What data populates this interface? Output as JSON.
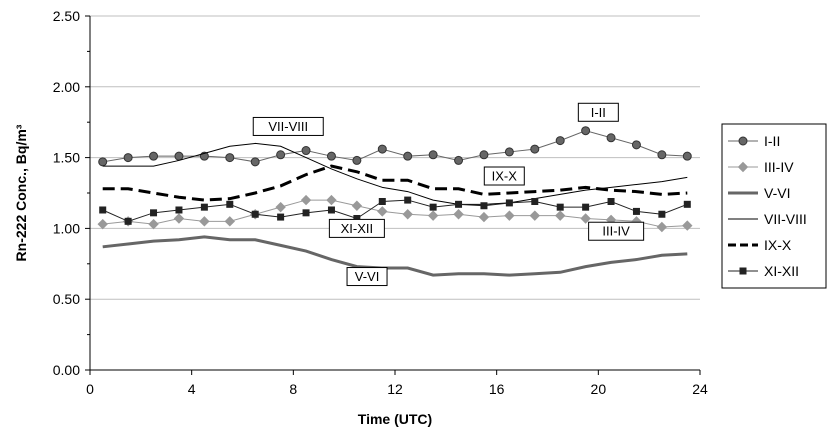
{
  "chart_data": {
    "type": "line",
    "title": "",
    "xlabel": "Time (UTC)",
    "ylabel": "Rn-222 Conc., Bq/m³",
    "xlim": [
      0,
      24
    ],
    "ylim": [
      0,
      2.5
    ],
    "x_ticks": [
      "0",
      "4",
      "8",
      "12",
      "16",
      "20",
      "24"
    ],
    "y_ticks": [
      "0.00",
      "0.50",
      "1.00",
      "1.50",
      "2.00",
      "2.50"
    ],
    "grid": "horizontal",
    "legend_position": "right",
    "x": [
      0.5,
      1.5,
      2.5,
      3.5,
      4.5,
      5.5,
      6.5,
      7.5,
      8.5,
      9.5,
      10.5,
      11.5,
      12.5,
      13.5,
      14.5,
      15.5,
      16.5,
      17.5,
      18.5,
      19.5,
      20.5,
      21.5,
      22.5,
      23.5
    ],
    "series": [
      {
        "name": "I-II",
        "style": "circle",
        "color": "#666666",
        "values": [
          1.47,
          1.5,
          1.51,
          1.51,
          1.51,
          1.5,
          1.47,
          1.52,
          1.55,
          1.51,
          1.48,
          1.56,
          1.51,
          1.52,
          1.48,
          1.52,
          1.54,
          1.56,
          1.62,
          1.69,
          1.64,
          1.59,
          1.52,
          1.51
        ]
      },
      {
        "name": "III-IV",
        "style": "diamond",
        "color": "#999999",
        "values": [
          1.03,
          1.05,
          1.03,
          1.07,
          1.05,
          1.05,
          1.1,
          1.15,
          1.2,
          1.2,
          1.16,
          1.12,
          1.1,
          1.09,
          1.1,
          1.08,
          1.09,
          1.09,
          1.09,
          1.07,
          1.06,
          1.05,
          1.01,
          1.02
        ]
      },
      {
        "name": "V-VI",
        "style": "thick",
        "color": "#666666",
        "values": [
          0.87,
          0.89,
          0.91,
          0.92,
          0.94,
          0.92,
          0.92,
          0.88,
          0.84,
          0.78,
          0.73,
          0.72,
          0.72,
          0.67,
          0.68,
          0.68,
          0.67,
          0.68,
          0.69,
          0.73,
          0.76,
          0.78,
          0.81,
          0.82
        ]
      },
      {
        "name": "VII-VIII",
        "style": "thin",
        "color": "#000000",
        "values": [
          1.44,
          1.44,
          1.44,
          1.48,
          1.53,
          1.58,
          1.6,
          1.58,
          1.5,
          1.42,
          1.35,
          1.29,
          1.26,
          1.2,
          1.17,
          1.17,
          1.18,
          1.21,
          1.24,
          1.27,
          1.29,
          1.31,
          1.33,
          1.36
        ]
      },
      {
        "name": "IX-X",
        "style": "dashed",
        "color": "#000000",
        "values": [
          1.28,
          1.28,
          1.25,
          1.22,
          1.2,
          1.21,
          1.25,
          1.3,
          1.38,
          1.44,
          1.4,
          1.34,
          1.34,
          1.28,
          1.28,
          1.24,
          1.25,
          1.26,
          1.27,
          1.29,
          1.27,
          1.26,
          1.24,
          1.25
        ]
      },
      {
        "name": "XI-XII",
        "style": "square",
        "color": "#222222",
        "values": [
          1.13,
          1.05,
          1.11,
          1.13,
          1.15,
          1.17,
          1.1,
          1.08,
          1.11,
          1.13,
          1.07,
          1.19,
          1.2,
          1.15,
          1.17,
          1.16,
          1.18,
          1.19,
          1.15,
          1.15,
          1.19,
          1.12,
          1.1,
          1.17
        ]
      }
    ],
    "annotations": [
      {
        "text": "I-II",
        "x": 20.0,
        "y": 1.82
      },
      {
        "text": "VII-VIII",
        "x": 7.8,
        "y": 1.72
      },
      {
        "text": "IX-X",
        "x": 16.3,
        "y": 1.37
      },
      {
        "text": "XI-XII",
        "x": 10.5,
        "y": 1.0
      },
      {
        "text": "III-IV",
        "x": 20.7,
        "y": 0.98
      },
      {
        "text": "V-VI",
        "x": 10.9,
        "y": 0.66
      }
    ]
  }
}
